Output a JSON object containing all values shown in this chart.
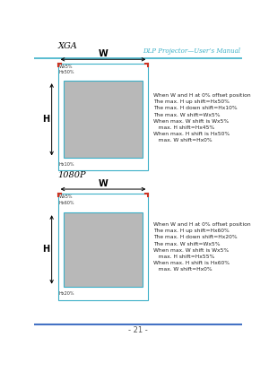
{
  "title_header": "DLP Projector—User’s Manual",
  "footer_text": "- 21 -",
  "header_line_color": "#3cb0c8",
  "footer_line_color": "#4472c4",
  "bg_color": "#ffffff",
  "xga_label": "XGA",
  "p1080_label": "1080P",
  "W_label": "W",
  "H_label": "H",
  "xga_text": "When W and H at 0% offset position\nThe max. H up shift=Hx50%\nThe max. H down shift=Hx10%\nThe max. W shift=Wx5%\nWhen max. W shift is Wx5%\n   max. H shift=Hx45%\nWhen max. H shift is Hx50%\n   max. W shift=Hx0%",
  "p1080_text": "When W and H at 0% offset position\nThe max. H up shift=Hx60%\nThe max. H down shift=Hx20%\nThe max. W shift=Wx5%\nWhen max. W shift is Wx5%\n   max. H shift=Hx55%\nWhen max. H shift is Hx60%\n   max. W shift=Hx0%",
  "outer_rect_color": "#3cb0c8",
  "inner_rect_color": "#3cb0c8",
  "gray_fill": "#b8b8b8",
  "red_corner_color": "#cc3322",
  "text_color": "#222222"
}
